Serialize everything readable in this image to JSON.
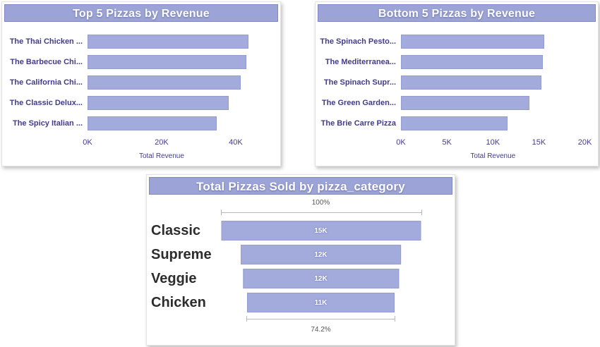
{
  "colors": {
    "accent": "#9CA4D7",
    "bar_fill": "#A3ABDD",
    "bar_border": "#949DD0",
    "axis_text": "#413C8A",
    "funnel_label_text": "#2D2D2D",
    "percent_text": "#555555",
    "ruler_line": "#B8B8B8",
    "title_text": "#FFFFFF",
    "card_background": "#FFFFFF"
  },
  "chart_data": [
    {
      "id": "top5",
      "type": "bar",
      "orientation": "horizontal",
      "title": "Top 5 Pizzas by Revenue",
      "categories": [
        "The Thai Chicken ...",
        "The Barbecue Chi...",
        "The California Chi...",
        "The Classic Delux...",
        "The Spicy Italian ..."
      ],
      "values": [
        43.4,
        42.8,
        41.4,
        38.2,
        34.8
      ],
      "value_unit": "K",
      "xlabel": "Total Revenue",
      "ticks": [
        {
          "label": "0K",
          "value": 0
        },
        {
          "label": "20K",
          "value": 20
        },
        {
          "label": "40K",
          "value": 40
        }
      ],
      "axis_max": 50.5,
      "grid": false,
      "legend": false
    },
    {
      "id": "bottom5",
      "type": "bar",
      "orientation": "horizontal",
      "title": "Bottom 5 Pizzas by Revenue",
      "categories": [
        "The Spinach Pesto...",
        "The Mediterranea...",
        "The Spinach Supr...",
        "The Green Garden...",
        "The Brie Carre Pizza"
      ],
      "values": [
        15.6,
        15.4,
        15.3,
        14.0,
        11.6
      ],
      "value_unit": "K",
      "xlabel": "Total Revenue",
      "ticks": [
        {
          "label": "0K",
          "value": 0
        },
        {
          "label": "5K",
          "value": 5
        },
        {
          "label": "10K",
          "value": 10
        },
        {
          "label": "15K",
          "value": 15
        },
        {
          "label": "20K",
          "value": 20
        }
      ],
      "axis_max": 20.8,
      "grid": false,
      "legend": false
    },
    {
      "id": "funnel",
      "type": "funnel",
      "title": "Total Pizzas Sold by pizza_category",
      "categories": [
        "Classic",
        "Supreme",
        "Veggie",
        "Chicken"
      ],
      "bar_labels": [
        "15K",
        "12K",
        "12K",
        "11K"
      ],
      "width_percent": [
        100,
        80.5,
        78.2,
        74.2
      ],
      "top_conversion": "100%",
      "bottom_conversion": "74.2%",
      "grid": false,
      "legend": false
    }
  ]
}
